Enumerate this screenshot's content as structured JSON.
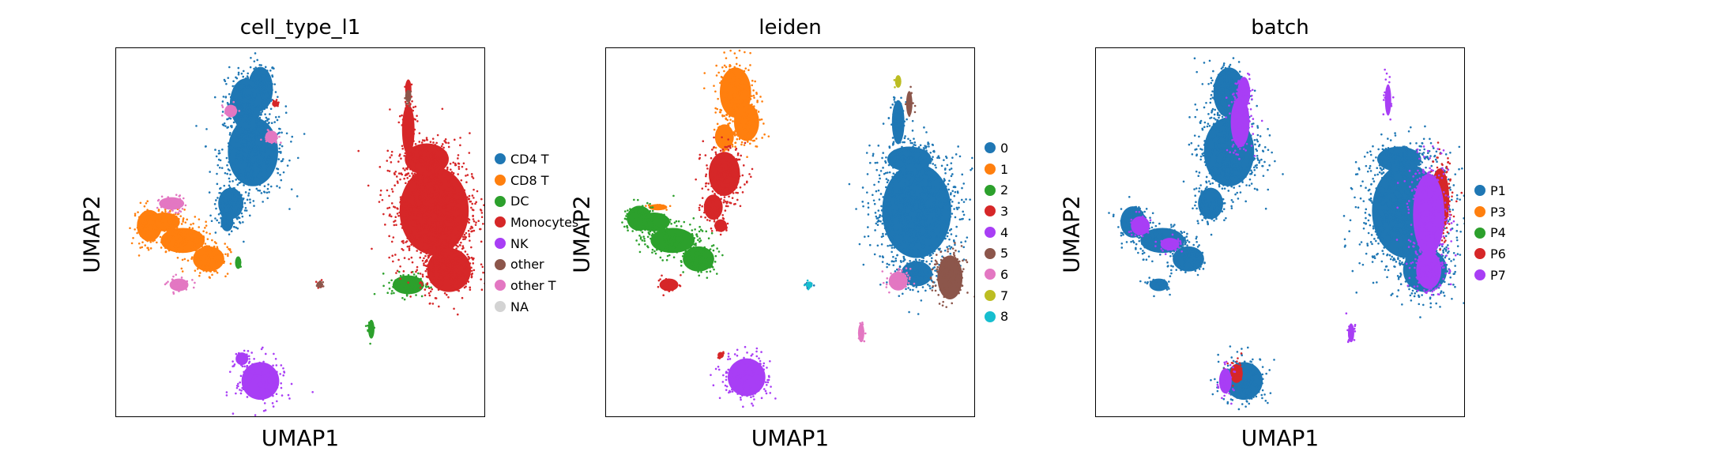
{
  "chart_data": [
    {
      "type": "scatter",
      "title": "cell_type_l1",
      "xlabel": "UMAP1",
      "ylabel": "UMAP2",
      "grid": false,
      "legend_placement": "right",
      "xlim": [
        0,
        100
      ],
      "ylim": [
        0,
        100
      ],
      "series": [
        {
          "name": "CD4 T",
          "color": "#1f77b4",
          "blobs": [
            [
              39,
              89,
              4,
              7
            ],
            [
              37,
              72,
              8,
              11
            ],
            [
              31,
              58,
              4,
              5
            ],
            [
              35,
              85,
              5,
              8
            ],
            [
              30,
              53,
              2,
              3
            ]
          ]
        },
        {
          "name": "CD8 T",
          "color": "#ff7f0e",
          "blobs": [
            [
              9,
              52,
              4,
              5
            ],
            [
              18,
              48,
              7,
              4
            ],
            [
              25,
              43,
              5,
              4
            ],
            [
              13,
              53,
              5,
              3
            ]
          ]
        },
        {
          "name": "DC",
          "color": "#2ca02c",
          "blobs": [
            [
              79,
              36,
              5,
              3
            ],
            [
              69,
              24,
              1,
              3
            ],
            [
              33,
              42,
              1,
              2
            ]
          ]
        },
        {
          "name": "Monocytes",
          "color": "#d62728",
          "blobs": [
            [
              86,
              56,
              11,
              14
            ],
            [
              90,
              40,
              7,
              7
            ],
            [
              84,
              70,
              7,
              5
            ],
            [
              79,
              78,
              2,
              8
            ],
            [
              79,
              89,
              1,
              3
            ],
            [
              55,
              36,
              1,
              1
            ],
            [
              43,
              85,
              1,
              1
            ]
          ]
        },
        {
          "name": "NK",
          "color": "#a83ef5",
          "blobs": [
            [
              39,
              10,
              6,
              6
            ],
            [
              34,
              16,
              2,
              2
            ]
          ]
        },
        {
          "name": "other",
          "color": "#8c564b",
          "blobs": [
            [
              79,
              87,
              1,
              2
            ],
            [
              55,
              36,
              1,
              1
            ]
          ]
        },
        {
          "name": "other T",
          "color": "#e377c2",
          "blobs": [
            [
              17,
              36,
              3,
              2
            ],
            [
              31,
              83,
              2,
              2
            ],
            [
              15,
              58,
              4,
              2
            ],
            [
              42,
              76,
              2,
              2
            ]
          ]
        },
        {
          "name": "NA",
          "color": "#d3d3d3",
          "blobs": []
        }
      ]
    },
    {
      "type": "scatter",
      "title": "leiden",
      "xlabel": "UMAP1",
      "ylabel": "UMAP2",
      "grid": false,
      "legend_placement": "right",
      "xlim": [
        0,
        100
      ],
      "ylim": [
        0,
        100
      ],
      "series": [
        {
          "name": "0",
          "color": "#1f77b4",
          "blobs": [
            [
              84,
              56,
              11,
              15
            ],
            [
              82,
              70,
              7,
              4
            ],
            [
              79,
              80,
              2,
              7
            ],
            [
              84,
              39,
              5,
              4
            ],
            [
              55,
              36,
              1,
              1
            ]
          ]
        },
        {
          "name": "1",
          "color": "#ff7f0e",
          "blobs": [
            [
              35,
              88,
              5,
              8
            ],
            [
              38,
              80,
              4,
              6
            ],
            [
              32,
              76,
              3,
              4
            ],
            [
              14,
              57,
              3,
              1
            ]
          ]
        },
        {
          "name": "2",
          "color": "#2ca02c",
          "blobs": [
            [
              9,
              54,
              4,
              4
            ],
            [
              18,
              48,
              7,
              4
            ],
            [
              25,
              43,
              5,
              4
            ],
            [
              13,
              53,
              5,
              3
            ]
          ]
        },
        {
          "name": "3",
          "color": "#d62728",
          "blobs": [
            [
              32,
              66,
              5,
              7
            ],
            [
              29,
              57,
              3,
              4
            ],
            [
              17,
              36,
              3,
              2
            ],
            [
              31,
              52,
              2,
              2
            ],
            [
              31,
              17,
              1,
              1
            ]
          ]
        },
        {
          "name": "4",
          "color": "#a83ef5",
          "blobs": [
            [
              38,
              11,
              6,
              6
            ]
          ]
        },
        {
          "name": "5",
          "color": "#8c564b",
          "blobs": [
            [
              93,
              38,
              4,
              7
            ],
            [
              82,
              85,
              1,
              4
            ]
          ]
        },
        {
          "name": "6",
          "color": "#e377c2",
          "blobs": [
            [
              79,
              37,
              3,
              3
            ],
            [
              69,
              23,
              1,
              3
            ]
          ]
        },
        {
          "name": "7",
          "color": "#bcbd22",
          "blobs": [
            [
              79,
              91,
              1,
              2
            ]
          ]
        },
        {
          "name": "8",
          "color": "#17becf",
          "blobs": [
            [
              55,
              36,
              1,
              1
            ]
          ]
        }
      ]
    },
    {
      "type": "scatter",
      "title": "batch",
      "xlabel": "UMAP1",
      "ylabel": "UMAP2",
      "grid": false,
      "legend_placement": "right",
      "xlim": [
        0,
        100
      ],
      "ylim": [
        0,
        100
      ],
      "series": [
        {
          "name": "P1",
          "color": "#1f77b4",
          "blobs": [
            [
              36,
              88,
              5,
              8
            ],
            [
              36,
              72,
              8,
              11
            ],
            [
              31,
              58,
              4,
              5
            ],
            [
              10,
              53,
              4,
              5
            ],
            [
              18,
              48,
              7,
              4
            ],
            [
              25,
              43,
              5,
              4
            ],
            [
              84,
              56,
              11,
              15
            ],
            [
              82,
              70,
              7,
              4
            ],
            [
              89,
              40,
              7,
              7
            ],
            [
              40,
              10,
              6,
              6
            ],
            [
              17,
              36,
              3,
              2
            ]
          ]
        },
        {
          "name": "P3",
          "color": "#ff7f0e",
          "blobs": []
        },
        {
          "name": "P4",
          "color": "#2ca02c",
          "blobs": []
        },
        {
          "name": "P6",
          "color": "#d62728",
          "blobs": [
            [
              93,
              59,
              3,
              10
            ],
            [
              38,
              12,
              2,
              3
            ]
          ]
        },
        {
          "name": "P7",
          "color": "#a83ef5",
          "blobs": [
            [
              39,
              80,
              3,
              8
            ],
            [
              90,
              55,
              5,
              13
            ],
            [
              90,
              40,
              4,
              6
            ],
            [
              12,
              52,
              3,
              3
            ],
            [
              40,
              88,
              2,
              5
            ],
            [
              79,
              86,
              1,
              5
            ],
            [
              69,
              23,
              1,
              3
            ],
            [
              35,
              10,
              2,
              4
            ],
            [
              20,
              47,
              3,
              2
            ]
          ]
        }
      ]
    }
  ]
}
